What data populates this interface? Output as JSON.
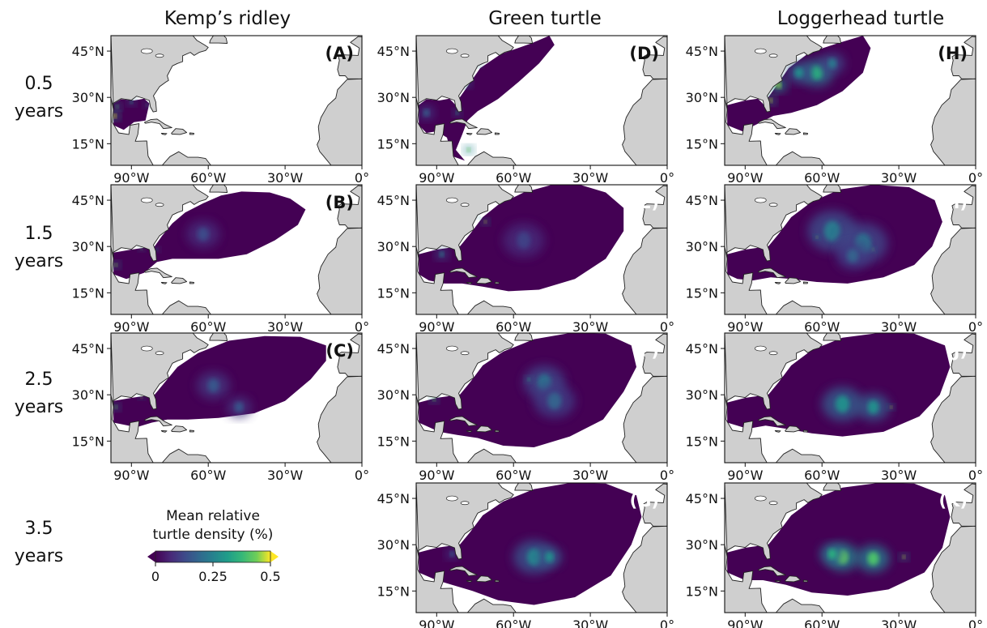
{
  "species": [
    {
      "key": "kemp",
      "title": "Kemp’s ridley"
    },
    {
      "key": "green",
      "title": "Green turtle"
    },
    {
      "key": "loggerhead",
      "title": "Loggerhead turtle"
    }
  ],
  "rows": [
    {
      "line1": "0.5",
      "line2": "years"
    },
    {
      "line1": "1.5",
      "line2": "years"
    },
    {
      "line1": "2.5",
      "line2": "years"
    },
    {
      "line1": "3.5",
      "line2": "years"
    }
  ],
  "axes": {
    "lat_ticks": [
      "45°N",
      "30°N",
      "15°N"
    ],
    "lat_values": [
      45,
      30,
      15
    ],
    "lon_ticks": [
      "90°W",
      "60°W",
      "30°W",
      "0°"
    ],
    "lon_values": [
      -90,
      -60,
      -30,
      0
    ],
    "lon_range": [
      -98,
      0
    ],
    "lat_range": [
      8,
      50
    ]
  },
  "panels": [
    {
      "letter": "(A)",
      "col": 0,
      "row": 0,
      "letter_color": "#111111"
    },
    {
      "letter": "(B)",
      "col": 0,
      "row": 1,
      "letter_color": "#111111"
    },
    {
      "letter": "(C)",
      "col": 0,
      "row": 2,
      "letter_color": "#111111"
    },
    {
      "letter": "(D)",
      "col": 1,
      "row": 0,
      "letter_color": "#111111"
    },
    {
      "letter": "(E)",
      "col": 1,
      "row": 1,
      "letter_color": "#ffffff"
    },
    {
      "letter": "(F)",
      "col": 1,
      "row": 2,
      "letter_color": "#ffffff"
    },
    {
      "letter": "(G)",
      "col": 1,
      "row": 3,
      "letter_color": "#ffffff"
    },
    {
      "letter": "(H)",
      "col": 2,
      "row": 0,
      "letter_color": "#111111"
    },
    {
      "letter": "(I)",
      "col": 2,
      "row": 1,
      "letter_color": "#ffffff"
    },
    {
      "letter": "(J)",
      "col": 2,
      "row": 2,
      "letter_color": "#ffffff"
    },
    {
      "letter": "(K)",
      "col": 2,
      "row": 3,
      "letter_color": "#ffffff"
    }
  ],
  "colorbar": {
    "label_line1": "Mean relative",
    "label_line2": "turtle density (%)",
    "ticks": [
      "0",
      "0.25",
      "0.5"
    ],
    "tick_values": [
      0,
      0.25,
      0.5
    ],
    "range": [
      0,
      0.5
    ],
    "colormap": "viridis",
    "extend": "both"
  },
  "colors": {
    "land": "#cfcfcf",
    "coast": "#222222",
    "ocean": "#ffffff",
    "density_low": "#440154",
    "density_mid": "#21918c",
    "density_high": "#fde725"
  }
}
